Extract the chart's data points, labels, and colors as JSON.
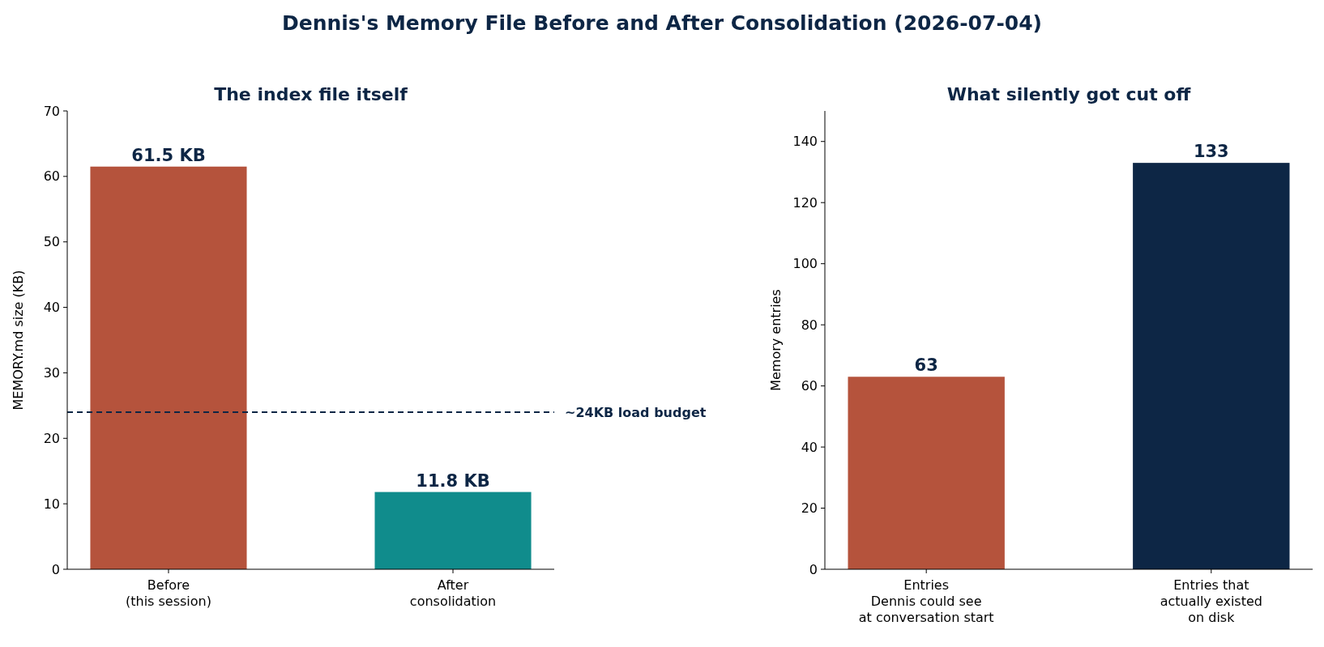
{
  "chart_data": [
    {
      "type": "bar",
      "title": "The index file itself",
      "ylabel": "MEMORY.md size (KB)",
      "categories": [
        "Before\n(this session)",
        "After\nconsolidation"
      ],
      "values": [
        61.5,
        11.8
      ],
      "colors": [
        "#b5533c",
        "#108c8c"
      ],
      "value_labels": [
        "61.5 KB",
        "11.8 KB"
      ],
      "ylim": [
        0,
        70
      ],
      "yticks": [
        0,
        10,
        20,
        30,
        40,
        50,
        60,
        70
      ],
      "ref_lines": [
        {
          "axis": "y",
          "value": 24,
          "label": "~24KB load budget",
          "color": "#0d2645",
          "line_style": "dashed"
        }
      ],
      "annotations": [
        "Dennis's Memory File Before and After Consolidation (2026-07-04)"
      ]
    },
    {
      "type": "bar",
      "title": "What silently got cut off",
      "ylabel": "Memory entries",
      "categories": [
        "Entries\nDennis could see\nat conversation start",
        "Entries that\nactually existed\non disk"
      ],
      "values": [
        63,
        133
      ],
      "colors": [
        "#b5533c",
        "#0d2645"
      ],
      "data_labels": true,
      "ylim": [
        0,
        150
      ],
      "yticks": [
        0,
        20,
        40,
        60,
        80,
        100,
        120,
        140
      ]
    }
  ]
}
